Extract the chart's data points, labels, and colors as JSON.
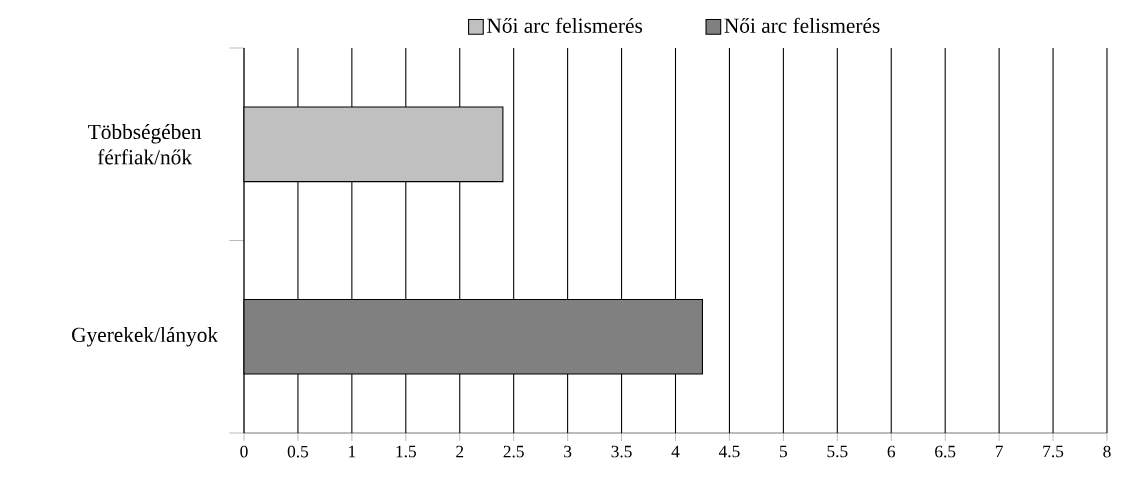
{
  "chart_data": {
    "type": "bar",
    "orientation": "horizontal",
    "categories": [
      "Többségében férfiak/nők",
      "Gyerekek/lányok"
    ],
    "series": [
      {
        "name": "Női arc felismerés",
        "color": "#c0c0c0",
        "values": [
          2.4,
          null
        ]
      },
      {
        "name": "Női arc felismerés",
        "color": "#808080",
        "values": [
          null,
          4.25
        ]
      }
    ],
    "xlim": [
      0,
      8
    ],
    "xticks": [
      0,
      0.5,
      1,
      1.5,
      2,
      2.5,
      3,
      3.5,
      4,
      4.5,
      5,
      5.5,
      6,
      6.5,
      7,
      7.5,
      8
    ],
    "grid": "x",
    "legend": "top"
  }
}
